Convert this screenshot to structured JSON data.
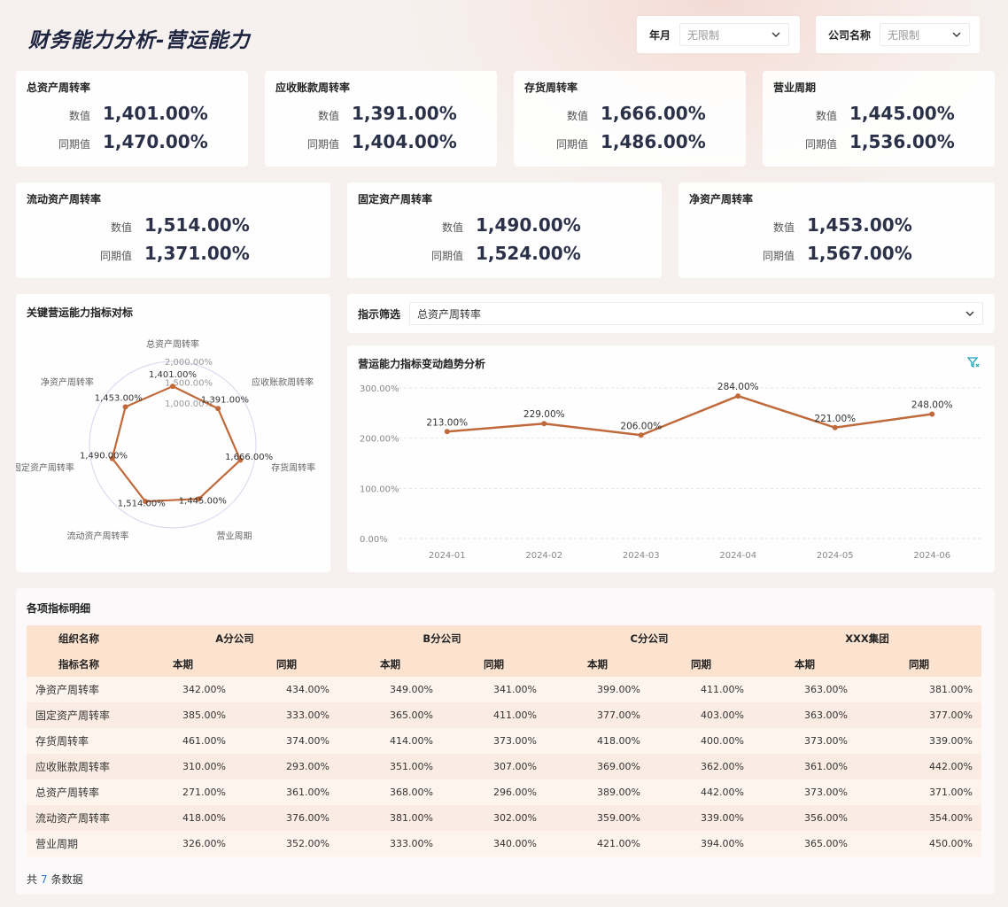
{
  "title": "财务能力分析-营运能力",
  "filters": [
    {
      "label": "年月",
      "value": "无限制"
    },
    {
      "label": "公司名称",
      "value": "无限制"
    }
  ],
  "kpis_row1": [
    {
      "title": "总资产周转率",
      "value_label": "数值",
      "value": "1,401.00%",
      "prior_label": "同期值",
      "prior": "1,470.00%"
    },
    {
      "title": "应收账款周转率",
      "value_label": "数值",
      "value": "1,391.00%",
      "prior_label": "同期值",
      "prior": "1,404.00%"
    },
    {
      "title": "存货周转率",
      "value_label": "数值",
      "value": "1,666.00%",
      "prior_label": "同期值",
      "prior": "1,486.00%"
    },
    {
      "title": "营业周期",
      "value_label": "数值",
      "value": "1,445.00%",
      "prior_label": "同期值",
      "prior": "1,536.00%"
    }
  ],
  "kpis_row2": [
    {
      "title": "流动资产周转率",
      "value_label": "数值",
      "value": "1,514.00%",
      "prior_label": "同期值",
      "prior": "1,371.00%"
    },
    {
      "title": "固定资产周转率",
      "value_label": "数值",
      "value": "1,490.00%",
      "prior_label": "同期值",
      "prior": "1,524.00%"
    },
    {
      "title": "净资产周转率",
      "value_label": "数值",
      "value": "1,453.00%",
      "prior_label": "同期值",
      "prior": "1,567.00%"
    }
  ],
  "radar": {
    "title": "关键营运能力指标对标",
    "color": "#c0693a",
    "axes": [
      "总资产周转率",
      "应收账款周转率",
      "存货周转率",
      "营业周期",
      "流动资产周转率",
      "固定资产周转率",
      "净资产周转率"
    ],
    "values": [
      1401,
      1391,
      1666,
      1445,
      1514,
      1490,
      1453
    ],
    "value_labels": [
      "1,401.00%",
      "1,391.00%",
      "1,666.00%",
      "1,445.00%",
      "1,514.00%",
      "1,490.00%",
      "1,453.00%"
    ],
    "scale": {
      "min": 0,
      "max": 2000
    },
    "scale_labels": [
      "1,000.00%",
      "1,500.00%",
      "2,000.00%"
    ]
  },
  "indicator_filter": {
    "label": "指示筛选",
    "value": "总资产周转率"
  },
  "trend": {
    "title": "营运能力指标变动趋势分析"
  },
  "chart_data": {
    "type": "line",
    "title": "营运能力指标变动趋势分析",
    "categories": [
      "2024-01",
      "2024-02",
      "2024-03",
      "2024-04",
      "2024-05",
      "2024-06"
    ],
    "values": [
      213,
      229,
      206,
      284,
      221,
      248
    ],
    "value_labels": [
      "213.00%",
      "229.00%",
      "206.00%",
      "284.00%",
      "221.00%",
      "248.00%"
    ],
    "ylim": [
      0,
      300
    ],
    "yticks": [
      0,
      100,
      200,
      300
    ],
    "ytick_labels": [
      "0.00%",
      "100.00%",
      "200.00%",
      "300.00%"
    ],
    "color": "#c0693a"
  },
  "table": {
    "title": "各项指标明细",
    "org_header": "组织名称",
    "metric_header": "指标名称",
    "orgs": [
      "A分公司",
      "B分公司",
      "C分公司",
      "XXX集团"
    ],
    "current_label": "本期",
    "prior_label": "同期",
    "rows": [
      {
        "name": "净资产周转率",
        "values": [
          "342.00%",
          "434.00%",
          "349.00%",
          "341.00%",
          "399.00%",
          "411.00%",
          "363.00%",
          "381.00%"
        ]
      },
      {
        "name": "固定资产周转率",
        "values": [
          "385.00%",
          "333.00%",
          "365.00%",
          "411.00%",
          "377.00%",
          "403.00%",
          "363.00%",
          "377.00%"
        ]
      },
      {
        "name": "存货周转率",
        "values": [
          "461.00%",
          "374.00%",
          "414.00%",
          "373.00%",
          "418.00%",
          "400.00%",
          "373.00%",
          "339.00%"
        ]
      },
      {
        "name": "应收账款周转率",
        "values": [
          "310.00%",
          "293.00%",
          "351.00%",
          "307.00%",
          "369.00%",
          "362.00%",
          "361.00%",
          "442.00%"
        ]
      },
      {
        "name": "总资产周转率",
        "values": [
          "271.00%",
          "361.00%",
          "368.00%",
          "296.00%",
          "389.00%",
          "442.00%",
          "373.00%",
          "371.00%"
        ]
      },
      {
        "name": "流动资产周转率",
        "values": [
          "418.00%",
          "376.00%",
          "381.00%",
          "302.00%",
          "359.00%",
          "339.00%",
          "356.00%",
          "354.00%"
        ]
      },
      {
        "name": "营业周期",
        "values": [
          "326.00%",
          "352.00%",
          "333.00%",
          "340.00%",
          "421.00%",
          "394.00%",
          "365.00%",
          "450.00%"
        ]
      }
    ],
    "footer": {
      "prefix": "共",
      "count": "7",
      "suffix": "条数据"
    }
  }
}
